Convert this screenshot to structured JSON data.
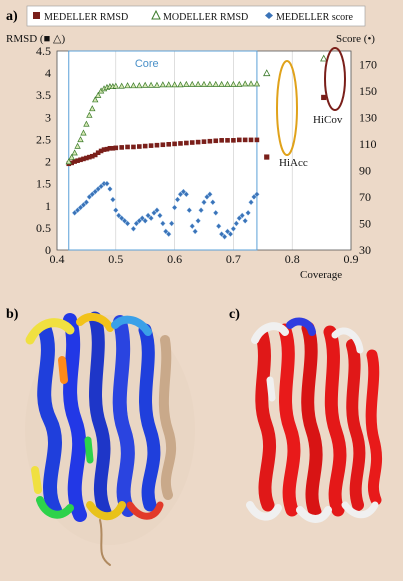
{
  "panels": {
    "a": "a)",
    "b": "b)",
    "c": "c)"
  },
  "chart_data": {
    "type": "scatter",
    "legend": [
      {
        "label": "MEDELLER RMSD",
        "marker": "filled-square",
        "color": "#7a1f1a"
      },
      {
        "label": "MODELLER RMSD",
        "marker": "open-triangle",
        "color": "#3a7a2a"
      },
      {
        "label": "MEDELLER score",
        "marker": "diamond",
        "color": "#3a73b8"
      }
    ],
    "ylabel": "RMSD (■ △)",
    "y2label": "Score (•)",
    "xlabel": "Coverage",
    "xlim": [
      0.4,
      0.9
    ],
    "ylim": [
      0,
      4.5
    ],
    "y2lim": [
      30,
      180
    ],
    "xticks": [
      "0.4",
      "0.5",
      "0.6",
      "0.7",
      "0.8",
      "0.9"
    ],
    "yticks": [
      "0",
      "0.5",
      "1",
      "1.5",
      "2",
      "2.5",
      "3",
      "3.5",
      "4",
      "4.5"
    ],
    "y2ticks": [
      "30",
      "50",
      "70",
      "90",
      "110",
      "130",
      "150",
      "170"
    ],
    "core_label": "Core",
    "core_region": [
      0.42,
      0.74
    ],
    "annotations": {
      "hiacc": "HiAcc",
      "hicov": "HiCov"
    },
    "series": [
      {
        "name": "MEDELLER RMSD",
        "x": [
          0.42,
          0.425,
          0.43,
          0.435,
          0.44,
          0.445,
          0.45,
          0.455,
          0.46,
          0.465,
          0.47,
          0.475,
          0.48,
          0.485,
          0.49,
          0.495,
          0.5,
          0.51,
          0.52,
          0.53,
          0.54,
          0.55,
          0.56,
          0.57,
          0.58,
          0.59,
          0.6,
          0.61,
          0.62,
          0.63,
          0.64,
          0.65,
          0.66,
          0.67,
          0.68,
          0.69,
          0.7,
          0.71,
          0.72,
          0.73,
          0.74,
          0.755
        ],
        "y": [
          1.95,
          1.97,
          2.0,
          2.02,
          2.04,
          2.06,
          2.08,
          2.1,
          2.12,
          2.15,
          2.2,
          2.24,
          2.27,
          2.28,
          2.3,
          2.3,
          2.31,
          2.32,
          2.33,
          2.33,
          2.34,
          2.35,
          2.36,
          2.37,
          2.38,
          2.39,
          2.4,
          2.41,
          2.42,
          2.43,
          2.44,
          2.45,
          2.46,
          2.47,
          2.48,
          2.48,
          2.48,
          2.49,
          2.49,
          2.49,
          2.49,
          2.5
        ]
      },
      {
        "name": "MODELLER RMSD",
        "x": [
          0.42,
          0.425,
          0.43,
          0.435,
          0.44,
          0.445,
          0.45,
          0.455,
          0.46,
          0.465,
          0.47,
          0.475,
          0.48,
          0.485,
          0.49,
          0.495,
          0.5,
          0.51,
          0.52,
          0.53,
          0.54,
          0.55,
          0.56,
          0.57,
          0.58,
          0.59,
          0.6,
          0.61,
          0.62,
          0.63,
          0.64,
          0.65,
          0.66,
          0.67,
          0.68,
          0.69,
          0.7,
          0.71,
          0.72,
          0.73,
          0.74,
          0.755
        ],
        "y": [
          2.0,
          2.1,
          2.2,
          2.35,
          2.5,
          2.65,
          2.85,
          3.05,
          3.2,
          3.4,
          3.5,
          3.6,
          3.65,
          3.68,
          3.7,
          3.7,
          3.71,
          3.71,
          3.72,
          3.72,
          3.72,
          3.73,
          3.73,
          3.73,
          3.74,
          3.74,
          3.74,
          3.74,
          3.75,
          3.75,
          3.75,
          3.75,
          3.75,
          3.75,
          3.75,
          3.75,
          3.75,
          3.75,
          3.76,
          3.76,
          3.76,
          4.0
        ]
      },
      {
        "name": "MEDELLER score",
        "x": [
          0.43,
          0.435,
          0.44,
          0.445,
          0.45,
          0.455,
          0.46,
          0.465,
          0.47,
          0.475,
          0.48,
          0.485,
          0.49,
          0.495,
          0.5,
          0.505,
          0.51,
          0.515,
          0.52,
          0.53,
          0.535,
          0.54,
          0.545,
          0.55,
          0.555,
          0.56,
          0.565,
          0.57,
          0.575,
          0.58,
          0.585,
          0.59,
          0.595,
          0.6,
          0.605,
          0.61,
          0.615,
          0.62,
          0.625,
          0.63,
          0.635,
          0.64,
          0.645,
          0.65,
          0.655,
          0.66,
          0.665,
          0.67,
          0.675,
          0.68,
          0.685,
          0.69,
          0.695,
          0.7,
          0.705,
          0.71,
          0.715,
          0.72,
          0.725,
          0.73,
          0.735,
          0.74
        ],
        "y": [
          58,
          60,
          62,
          64,
          66,
          70,
          72,
          74,
          76,
          78,
          80,
          80,
          76,
          68,
          60,
          56,
          54,
          52,
          50,
          46,
          50,
          52,
          54,
          52,
          56,
          54,
          58,
          60,
          56,
          50,
          44,
          42,
          50,
          62,
          68,
          72,
          74,
          72,
          60,
          48,
          44,
          52,
          60,
          66,
          70,
          72,
          66,
          58,
          48,
          42,
          40,
          44,
          42,
          46,
          50,
          54,
          56,
          52,
          58,
          66,
          70,
          72
        ]
      },
      {
        "name": "HiAcc",
        "x": [
          0.758
        ],
        "y": [
          2.5
        ]
      },
      {
        "name": "HiCov",
        "x": [
          0.84
        ],
        "y": [
          4.4
        ]
      }
    ]
  },
  "hicov_score_point": {
    "x": 0.84,
    "y": 145
  }
}
